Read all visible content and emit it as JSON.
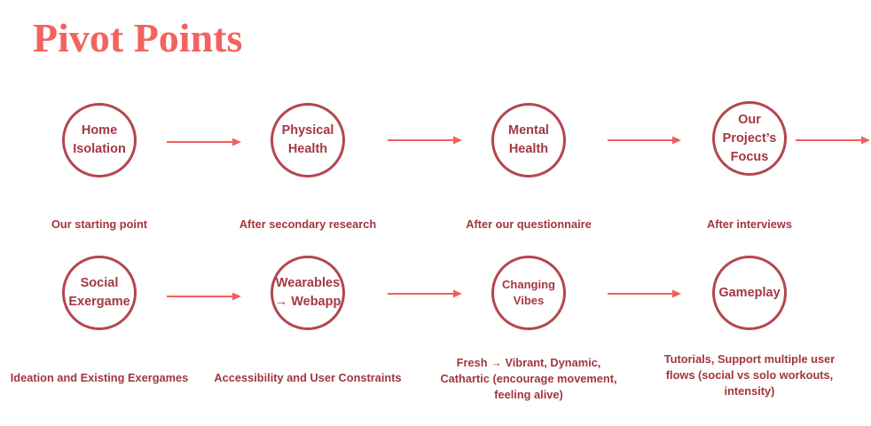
{
  "title": "Pivot Points",
  "colors": {
    "title": "#F2635F",
    "circle_border": "#B4464E",
    "node_text": "#A43842",
    "caption_text": "#A2363E",
    "arrow": "#EF605C",
    "background": "#FFFFFF"
  },
  "rows": [
    {
      "nodes": [
        {
          "label": [
            "Home",
            "Isolation"
          ],
          "caption": [
            "Our starting point"
          ]
        },
        {
          "label": [
            "Physical",
            "Health"
          ],
          "caption": [
            "After secondary research"
          ]
        },
        {
          "label": [
            "Mental",
            "Health"
          ],
          "caption": [
            "After our questionnaire"
          ]
        },
        {
          "label": [
            "Our",
            "Project’s",
            "Focus"
          ],
          "caption": [
            "After interviews"
          ]
        }
      ]
    },
    {
      "nodes": [
        {
          "label": [
            "Social",
            "Exergame"
          ],
          "caption": [
            "Ideation and Existing Exergames"
          ]
        },
        {
          "label": [
            "Wearables",
            "→ Webapp"
          ],
          "caption": [
            "Accessibility and User Constraints"
          ]
        },
        {
          "label": [
            "Changing",
            "Vibes"
          ],
          "caption": [
            "Fresh → Vibrant, Dynamic,",
            "Cathartic (encourage movement,",
            "feeling alive)"
          ]
        },
        {
          "label": [
            "Gameplay"
          ],
          "caption": [
            "Tutorials, Support multiple user",
            "flows (social vs solo workouts,",
            "intensity)"
          ]
        }
      ]
    }
  ]
}
